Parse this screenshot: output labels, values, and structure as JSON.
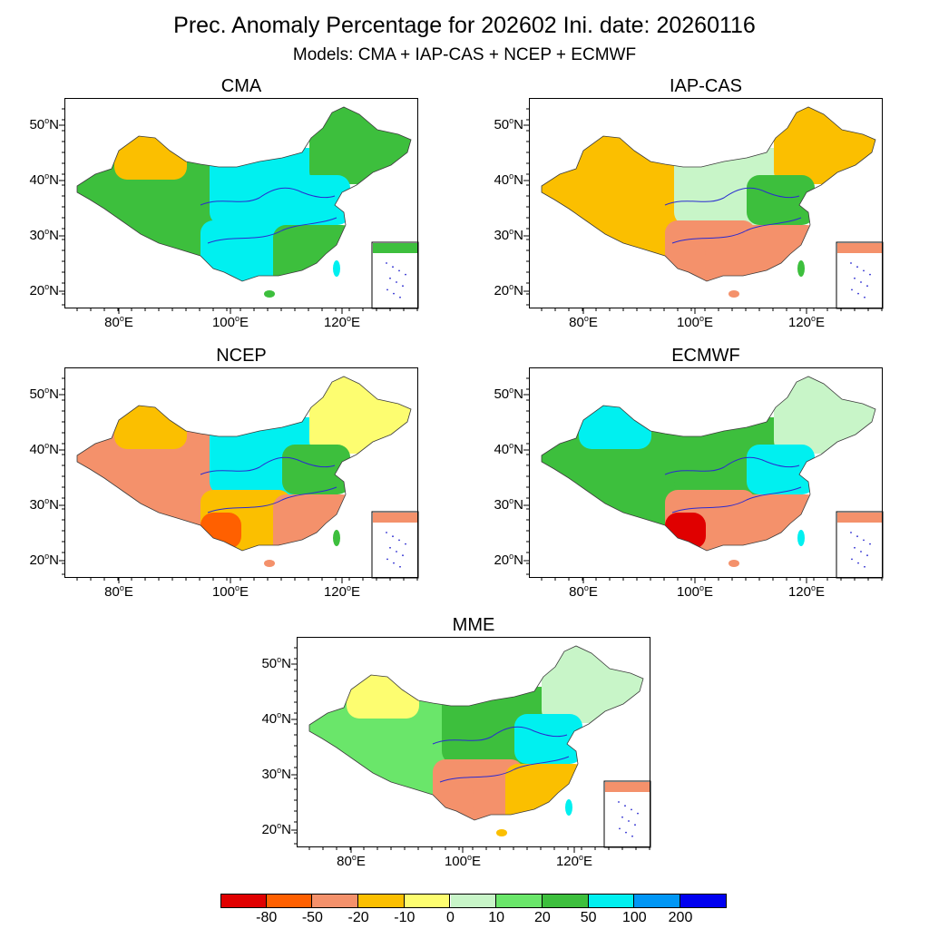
{
  "title": "Prec. Anomaly Percentage for 202602 Ini. date: 20260116",
  "subtitle": "Models: CMA + IAP-CAS + NCEP + ECMWF",
  "axes": {
    "lat_ticks": [
      "50",
      "40",
      "30",
      "20"
    ],
    "lat_unit": "N",
    "lon_ticks": [
      "80",
      "100",
      "120"
    ],
    "lon_unit": "E",
    "degree_symbol": "o"
  },
  "panels": [
    {
      "id": "cma",
      "title": "CMA",
      "west": "#3dbf3d",
      "nw_blob": "#fbbf00",
      "north": "#00f0f0",
      "east": "#00f0f0",
      "south": "#00f0f0",
      "southeast": "#3dbf3d",
      "southwest": "#00f0f0",
      "northeast": "#3dbf3d",
      "inset": "#3dbf3d"
    },
    {
      "id": "iap-cas",
      "title": "IAP-CAS",
      "west": "#fbbf00",
      "nw_blob": "#fbbf00",
      "north": "#c8f5c8",
      "east": "#3dbf3d",
      "south": "#f4916b",
      "southeast": "#f4916b",
      "southwest": "#f4916b",
      "northeast": "#fbbf00",
      "inset": "#f4916b"
    },
    {
      "id": "ncep",
      "title": "NCEP",
      "west": "#f4916b",
      "nw_blob": "#fbbf00",
      "north": "#00f0f0",
      "east": "#3dbf3d",
      "south": "#fbbf00",
      "southeast": "#f4916b",
      "southwest": "#ff6000",
      "northeast": "#fdfd70",
      "inset": "#f4916b"
    },
    {
      "id": "ecmwf",
      "title": "ECMWF",
      "west": "#3dbf3d",
      "nw_blob": "#00f0f0",
      "north": "#3dbf3d",
      "east": "#00f0f0",
      "south": "#f4916b",
      "southeast": "#f4916b",
      "southwest": "#e00000",
      "northeast": "#c8f5c8",
      "inset": "#f4916b"
    },
    {
      "id": "mme",
      "title": "MME",
      "west": "#6ae66a",
      "nw_blob": "#fdfd70",
      "north": "#3dbf3d",
      "east": "#00f0f0",
      "south": "#f4916b",
      "southeast": "#fbbf00",
      "southwest": "#f4916b",
      "northeast": "#c8f5c8",
      "inset": "#f4916b"
    }
  ],
  "legend": {
    "colors": [
      "#e00000",
      "#ff6000",
      "#f4916b",
      "#fbbf00",
      "#fdfd70",
      "#c8f5c8",
      "#6ae66a",
      "#3dbf3d",
      "#00f0f0",
      "#0096f5",
      "#0000f0"
    ],
    "labels": [
      "-80",
      "-50",
      "-20",
      "-10",
      "0",
      "10",
      "20",
      "50",
      "100",
      "200"
    ]
  },
  "colors": {
    "border": "#3c3c3c",
    "river": "#2a2ad0",
    "frame": "#000000"
  }
}
